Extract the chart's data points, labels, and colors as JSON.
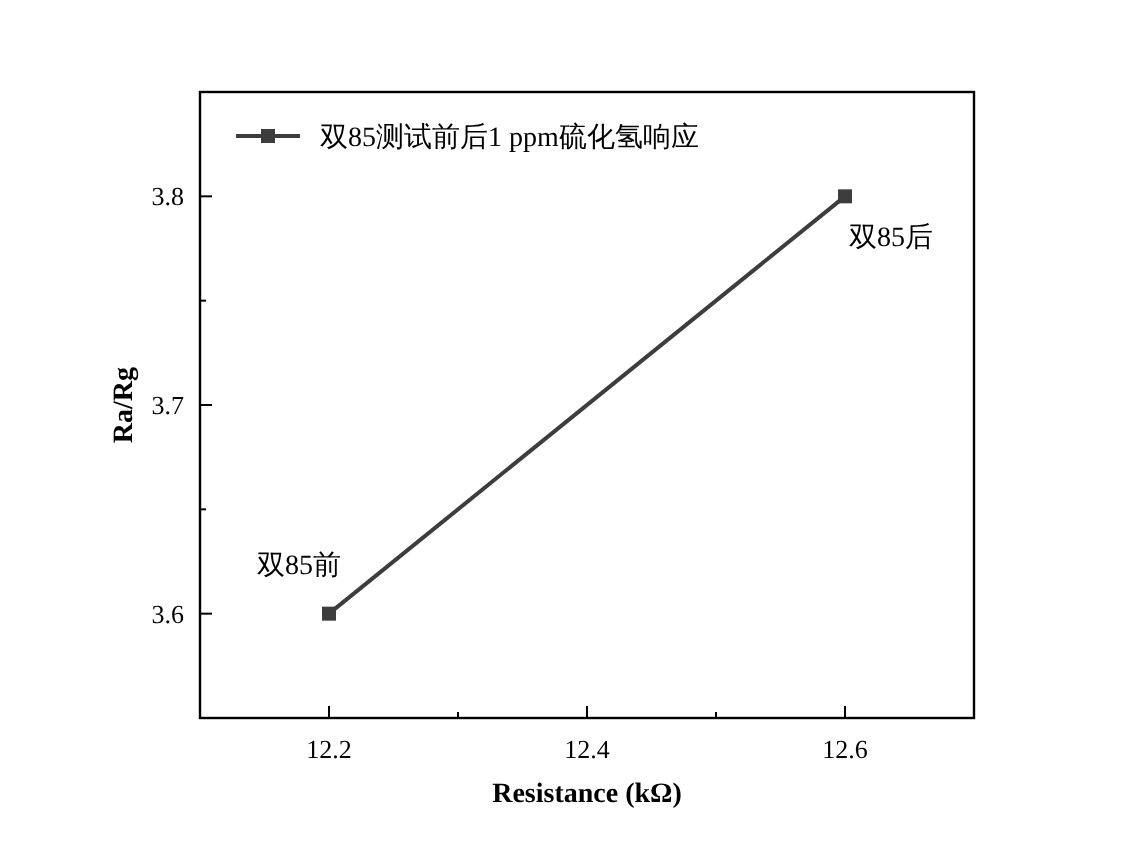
{
  "chart_data": {
    "type": "line",
    "xlabel": "Resistance (kΩ)",
    "ylabel": "Ra/Rg",
    "x": [
      12.2,
      12.6
    ],
    "series": [
      {
        "name": "双85测试前后1 ppm硫化氢响应",
        "color": "#3d3d3d",
        "values": [
          3.6,
          3.8
        ]
      }
    ],
    "xlim": [
      12.1,
      12.7
    ],
    "xticks": [
      {
        "value": 12.1,
        "label": null
      },
      12.2,
      {
        "value": 12.3,
        "label": null
      },
      12.4,
      {
        "value": 12.5,
        "label": null
      },
      12.6,
      {
        "value": 12.7,
        "label": null
      }
    ],
    "ylim": [
      3.55,
      3.85
    ],
    "yticks": [
      {
        "value": 3.55,
        "label": null
      },
      3.6,
      {
        "value": 3.65,
        "label": null
      },
      3.7,
      {
        "value": 3.75,
        "label": null
      },
      3.8,
      {
        "value": 3.85,
        "label": null
      }
    ],
    "annotations": [
      {
        "text": "双85前",
        "x": 12.2,
        "y": 3.6
      },
      {
        "text": "双85后",
        "x": 12.6,
        "y": 3.8
      }
    ],
    "marker": "square",
    "line_style": "solid",
    "legend": "top left",
    "grid": false
  }
}
